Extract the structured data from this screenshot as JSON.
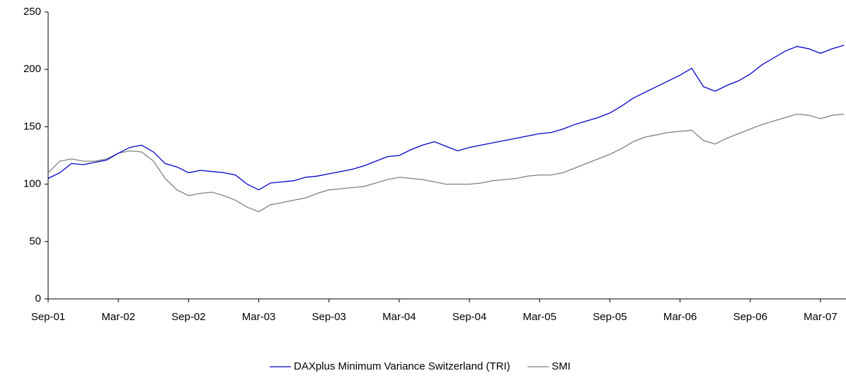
{
  "chart_data": {
    "type": "line",
    "categories": [
      "Sep-01",
      null,
      null,
      null,
      null,
      null,
      "Mar-02",
      null,
      null,
      null,
      null,
      null,
      "Sep-02",
      null,
      null,
      null,
      null,
      null,
      "Mar-03",
      null,
      null,
      null,
      null,
      null,
      "Sep-03",
      null,
      null,
      null,
      null,
      null,
      "Mar-04",
      null,
      null,
      null,
      null,
      null,
      "Sep-04",
      null,
      null,
      null,
      null,
      null,
      "Mar-05",
      null,
      null,
      null,
      null,
      null,
      "Sep-05",
      null,
      null,
      null,
      null,
      null,
      "Mar-06",
      null,
      null,
      null,
      null,
      null,
      "Sep-06",
      null,
      null,
      null,
      null,
      null,
      "Mar-07",
      null,
      null
    ],
    "series": [
      {
        "name": "DAXplus Minimum Variance Switzerland (TRI)",
        "color": "#0000cc",
        "values": [
          105,
          110,
          118,
          117,
          119,
          121,
          127,
          132,
          134,
          128,
          118,
          115,
          110,
          112,
          111,
          110,
          108,
          100,
          95,
          101,
          102,
          103,
          106,
          107,
          109,
          111,
          113,
          116,
          120,
          124,
          125,
          130,
          134,
          137,
          133,
          129,
          132,
          134,
          136,
          138,
          140,
          142,
          144,
          145,
          148,
          152,
          155,
          158,
          162,
          168,
          175,
          180,
          185,
          190,
          195,
          201,
          185,
          181,
          186,
          190,
          196,
          204,
          210,
          216,
          220,
          218,
          214,
          218,
          221
        ]
      },
      {
        "name": "SMI",
        "color": "#808080",
        "values": [
          110,
          120,
          122,
          120,
          120,
          122,
          127,
          129,
          128,
          120,
          105,
          95,
          90,
          92,
          93,
          90,
          86,
          80,
          76,
          82,
          84,
          86,
          88,
          92,
          95,
          96,
          97,
          98,
          101,
          104,
          106,
          105,
          104,
          102,
          100,
          100,
          100,
          101,
          103,
          104,
          105,
          107,
          108,
          108,
          110,
          114,
          118,
          122,
          126,
          131,
          137,
          141,
          143,
          145,
          146,
          147,
          138,
          135,
          140,
          144,
          148,
          152,
          155,
          158,
          161,
          160,
          157,
          160,
          161
        ]
      }
    ],
    "ylim": [
      0,
      250
    ],
    "yticks": [
      0,
      50,
      100,
      150,
      200,
      250
    ],
    "grid": false,
    "legend": "bottom"
  }
}
